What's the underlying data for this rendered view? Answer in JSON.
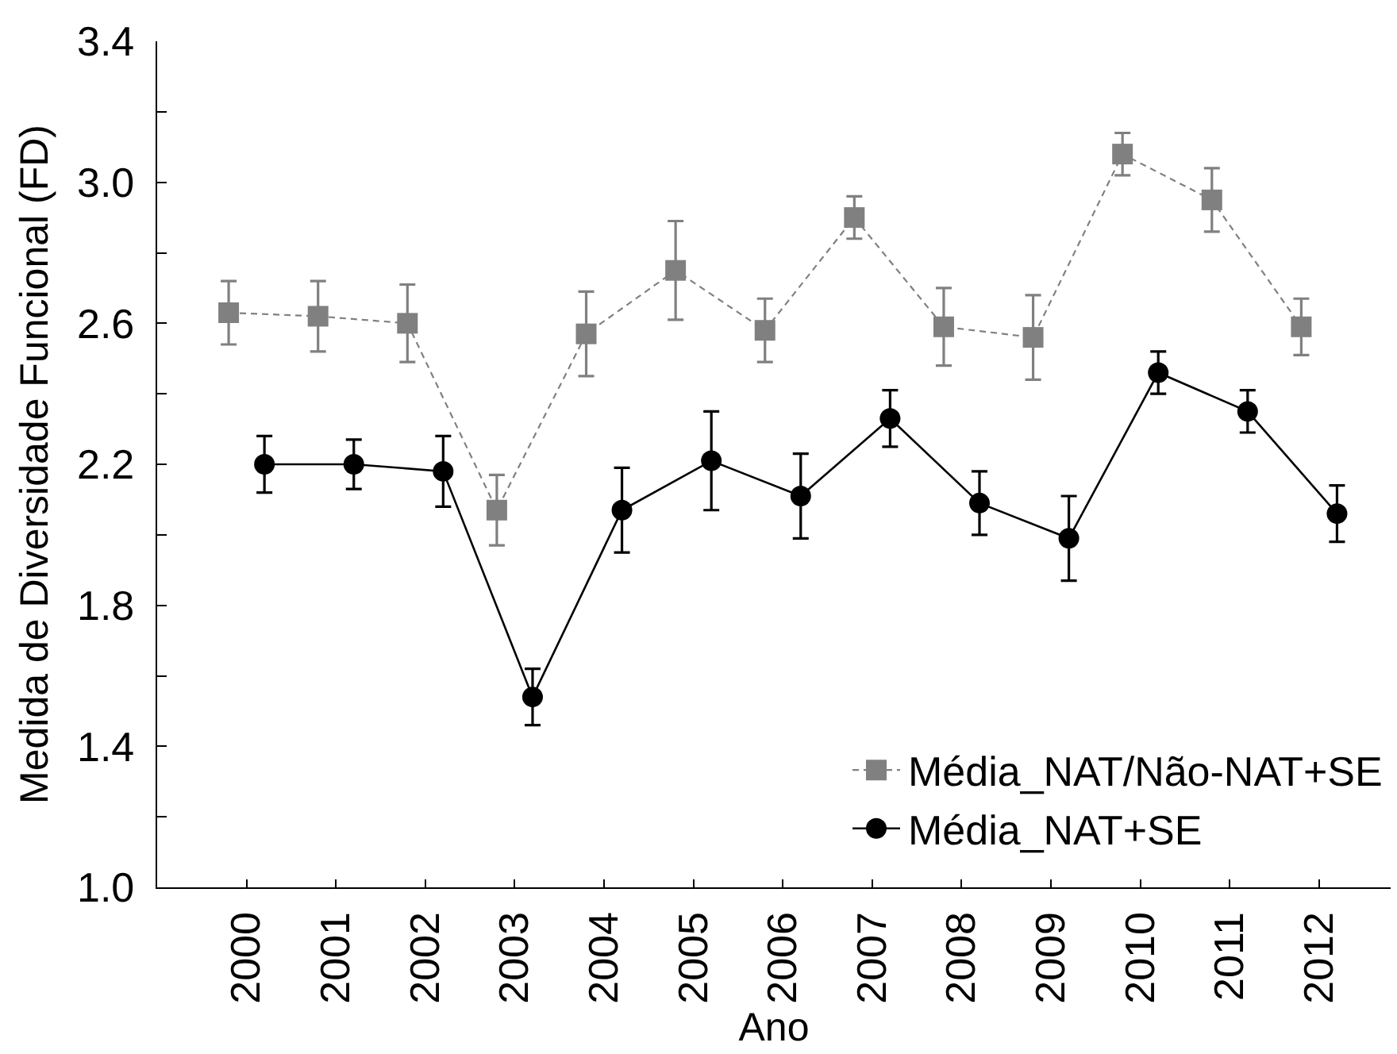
{
  "chart_data": {
    "type": "line",
    "xlabel": "Ano",
    "ylabel": "Medida de Diversidade Funcional (FD)",
    "categories": [
      "2000",
      "2001",
      "2002",
      "2003",
      "2004",
      "2005",
      "2006",
      "2007",
      "2008",
      "2009",
      "2010",
      "2011",
      "2012"
    ],
    "ylim": [
      1.0,
      3.4
    ],
    "yticks": [
      {
        "value": 1,
        "label": "1.0"
      },
      {
        "value": 1.2,
        "label": null
      },
      1.4,
      {
        "value": 1.6,
        "label": null
      },
      1.8,
      {
        "value": 2.0,
        "label": null
      },
      2.2,
      {
        "value": 2.4,
        "label": null
      },
      2.6,
      {
        "value": 2.8,
        "label": null
      },
      {
        "value": 3,
        "label": "3.0"
      },
      {
        "value": 3.2,
        "label": null
      },
      3.4
    ],
    "legend": "bottom right",
    "series": [
      {
        "name": "Média_NAT/Não-NAT+SE",
        "color": "#808080",
        "marker": "square",
        "line_style": "dashed",
        "values": [
          2.63,
          2.62,
          2.6,
          2.07,
          2.57,
          2.75,
          2.58,
          2.9,
          2.59,
          2.56,
          3.08,
          2.95,
          2.59
        ],
        "errors": [
          0.09,
          0.1,
          0.11,
          0.1,
          0.12,
          0.14,
          0.09,
          0.06,
          0.11,
          0.12,
          0.06,
          0.09,
          0.08
        ]
      },
      {
        "name": "Média_NAT+SE",
        "color": "#000000",
        "marker": "circle",
        "line_style": "solid",
        "values": [
          2.2,
          2.2,
          2.18,
          1.54,
          2.07,
          2.21,
          2.11,
          2.33,
          2.09,
          1.99,
          2.46,
          2.35,
          2.06
        ],
        "errors": [
          0.08,
          0.07,
          0.1,
          0.08,
          0.12,
          0.14,
          0.12,
          0.08,
          0.09,
          0.12,
          0.06,
          0.06,
          0.08
        ]
      }
    ]
  }
}
